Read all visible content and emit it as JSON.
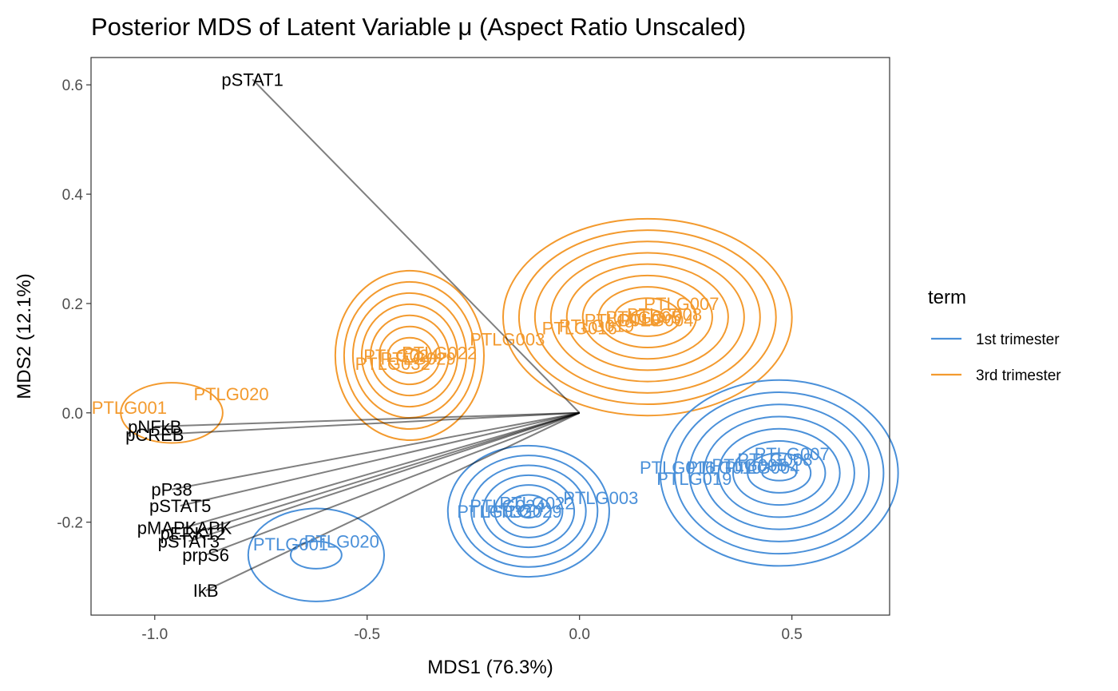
{
  "chart_data": {
    "type": "scatter",
    "title": "Posterior MDS of Latent Variable μ (Aspect Ratio Unscaled)",
    "xlabel": "MDS1 (76.3%)",
    "ylabel": "MDS2 (12.1%)",
    "xlim": [
      -1.15,
      0.73
    ],
    "ylim": [
      -0.37,
      0.65
    ],
    "xticks": [
      -1.0,
      -0.5,
      0.0,
      0.5
    ],
    "xtick_labels": [
      "-1.0",
      "-0.5",
      "0.0",
      "0.5"
    ],
    "yticks": [
      -0.2,
      0.0,
      0.2,
      0.4,
      0.6
    ],
    "ytick_labels": [
      "-0.2",
      "0.0",
      "0.2",
      "0.4",
      "0.6"
    ],
    "grid": false,
    "legend": {
      "title": "term",
      "position": "right",
      "entries": [
        {
          "label": "1st trimester",
          "color": "#4a90d9"
        },
        {
          "label": "3rd trimester",
          "color": "#f39a2e"
        }
      ]
    },
    "loadings": [
      {
        "label": "pSTAT1",
        "x": -0.77,
        "y": 0.61
      },
      {
        "label": "pNFkB",
        "x": -1.0,
        "y": -0.025
      },
      {
        "label": "pCREB",
        "x": -1.0,
        "y": -0.04
      },
      {
        "label": "pP38",
        "x": -0.96,
        "y": -0.14
      },
      {
        "label": "pSTAT5",
        "x": -0.94,
        "y": -0.17
      },
      {
        "label": "pMAPKAPK",
        "x": -0.93,
        "y": -0.21
      },
      {
        "label": "pERK12",
        "x": -0.91,
        "y": -0.22
      },
      {
        "label": "pSTAT3",
        "x": -0.92,
        "y": -0.235
      },
      {
        "label": "prpS6",
        "x": -0.88,
        "y": -0.26
      },
      {
        "label": "IkB",
        "x": -0.88,
        "y": -0.325
      }
    ],
    "series": [
      {
        "name": "3rd trimester",
        "color": "#f39a2e",
        "points": [
          {
            "label": "PTLG001",
            "x": -1.06,
            "y": 0.01
          },
          {
            "label": "PTLG020",
            "x": -0.82,
            "y": 0.035
          },
          {
            "label": "PTLG032",
            "x": -0.44,
            "y": 0.09
          },
          {
            "label": "PTLG024",
            "x": -0.42,
            "y": 0.105
          },
          {
            "label": "PTLG029",
            "x": -0.38,
            "y": 0.1
          },
          {
            "label": "PTLG022",
            "x": -0.33,
            "y": 0.11
          },
          {
            "label": "PTLG003",
            "x": -0.17,
            "y": 0.135
          },
          {
            "label": "PTLG016",
            "x": 0.0,
            "y": 0.155
          },
          {
            "label": "PTLG019",
            "x": 0.04,
            "y": 0.16
          },
          {
            "label": "PTLG010",
            "x": 0.1,
            "y": 0.17
          },
          {
            "label": "PTLG005",
            "x": 0.15,
            "y": 0.175
          },
          {
            "label": "PTLG004",
            "x": 0.18,
            "y": 0.17
          },
          {
            "label": "PTLG008",
            "x": 0.2,
            "y": 0.18
          },
          {
            "label": "PTLG007",
            "x": 0.24,
            "y": 0.2
          }
        ]
      },
      {
        "name": "1st trimester",
        "color": "#4a90d9",
        "points": [
          {
            "label": "PTLG001",
            "x": -0.68,
            "y": -0.24
          },
          {
            "label": "PTLG020",
            "x": -0.56,
            "y": -0.235
          },
          {
            "label": "PTLG032",
            "x": -0.2,
            "y": -0.18
          },
          {
            "label": "PTLG024",
            "x": -0.17,
            "y": -0.17
          },
          {
            "label": "PTLG029",
            "x": -0.13,
            "y": -0.18
          },
          {
            "label": "PTLG022",
            "x": -0.1,
            "y": -0.165
          },
          {
            "label": "PTLG003",
            "x": 0.05,
            "y": -0.155
          },
          {
            "label": "PTLG016",
            "x": 0.23,
            "y": -0.1
          },
          {
            "label": "PTLG019",
            "x": 0.27,
            "y": -0.12
          },
          {
            "label": "PTLG010",
            "x": 0.34,
            "y": -0.1
          },
          {
            "label": "PTLG005",
            "x": 0.4,
            "y": -0.095
          },
          {
            "label": "PTLG004",
            "x": 0.43,
            "y": -0.1
          },
          {
            "label": "PTLG008",
            "x": 0.46,
            "y": -0.085
          },
          {
            "label": "PTLG007",
            "x": 0.5,
            "y": -0.075
          }
        ]
      }
    ],
    "density_contours": [
      {
        "series": "3rd trimester",
        "modes": [
          {
            "x": -0.4,
            "y": 0.105
          },
          {
            "x": 0.16,
            "y": 0.18
          },
          {
            "x": -1.0,
            "y": 0.01
          }
        ]
      },
      {
        "series": "1st trimester",
        "modes": [
          {
            "x": -0.12,
            "y": -0.18
          },
          {
            "x": 0.47,
            "y": -0.11
          },
          {
            "x": -0.62,
            "y": -0.26
          }
        ]
      }
    ]
  }
}
